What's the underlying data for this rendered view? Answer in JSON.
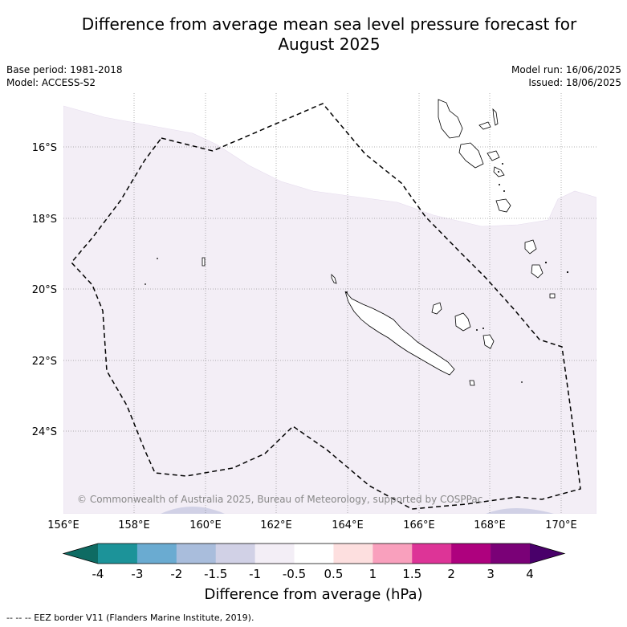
{
  "title_line1": "Difference from average mean sea level pressure forecast for",
  "title_line2": "August 2025",
  "meta_left": {
    "base_period": "Base period: 1981-2018",
    "model": "Model: ACCESS-S2"
  },
  "meta_right": {
    "model_run": "Model run: 16/06/2025",
    "issued": "Issued: 18/06/2025"
  },
  "map": {
    "lon_labels": [
      "156°E",
      "158°E",
      "160°E",
      "162°E",
      "164°E",
      "166°E",
      "168°E",
      "170°E"
    ],
    "lat_labels": [
      "16°S",
      "18°S",
      "20°S",
      "22°S",
      "24°S"
    ],
    "copyright": "© Commonwealth of Australia 2025, Bureau of Meteorology, supported by COSPPac"
  },
  "colorbar": {
    "ticks": [
      "-4",
      "-3",
      "-2",
      "-1.5",
      "-1",
      "-0.5",
      "0.5",
      "1",
      "1.5",
      "2",
      "3",
      "4"
    ],
    "colors": [
      "#0e6b63",
      "#1c9399",
      "#6aabd1",
      "#a9bddc",
      "#d1d1e6",
      "#f3eef6",
      "#ffffff",
      "#fddfdf",
      "#f9a0bd",
      "#dd3497",
      "#ae017e",
      "#7a0177",
      "#49006a"
    ],
    "label": "Difference from average (hPa)"
  },
  "footer": "--  --  -- EEZ border V11 (Flanders Marine Institute, 2019)."
}
